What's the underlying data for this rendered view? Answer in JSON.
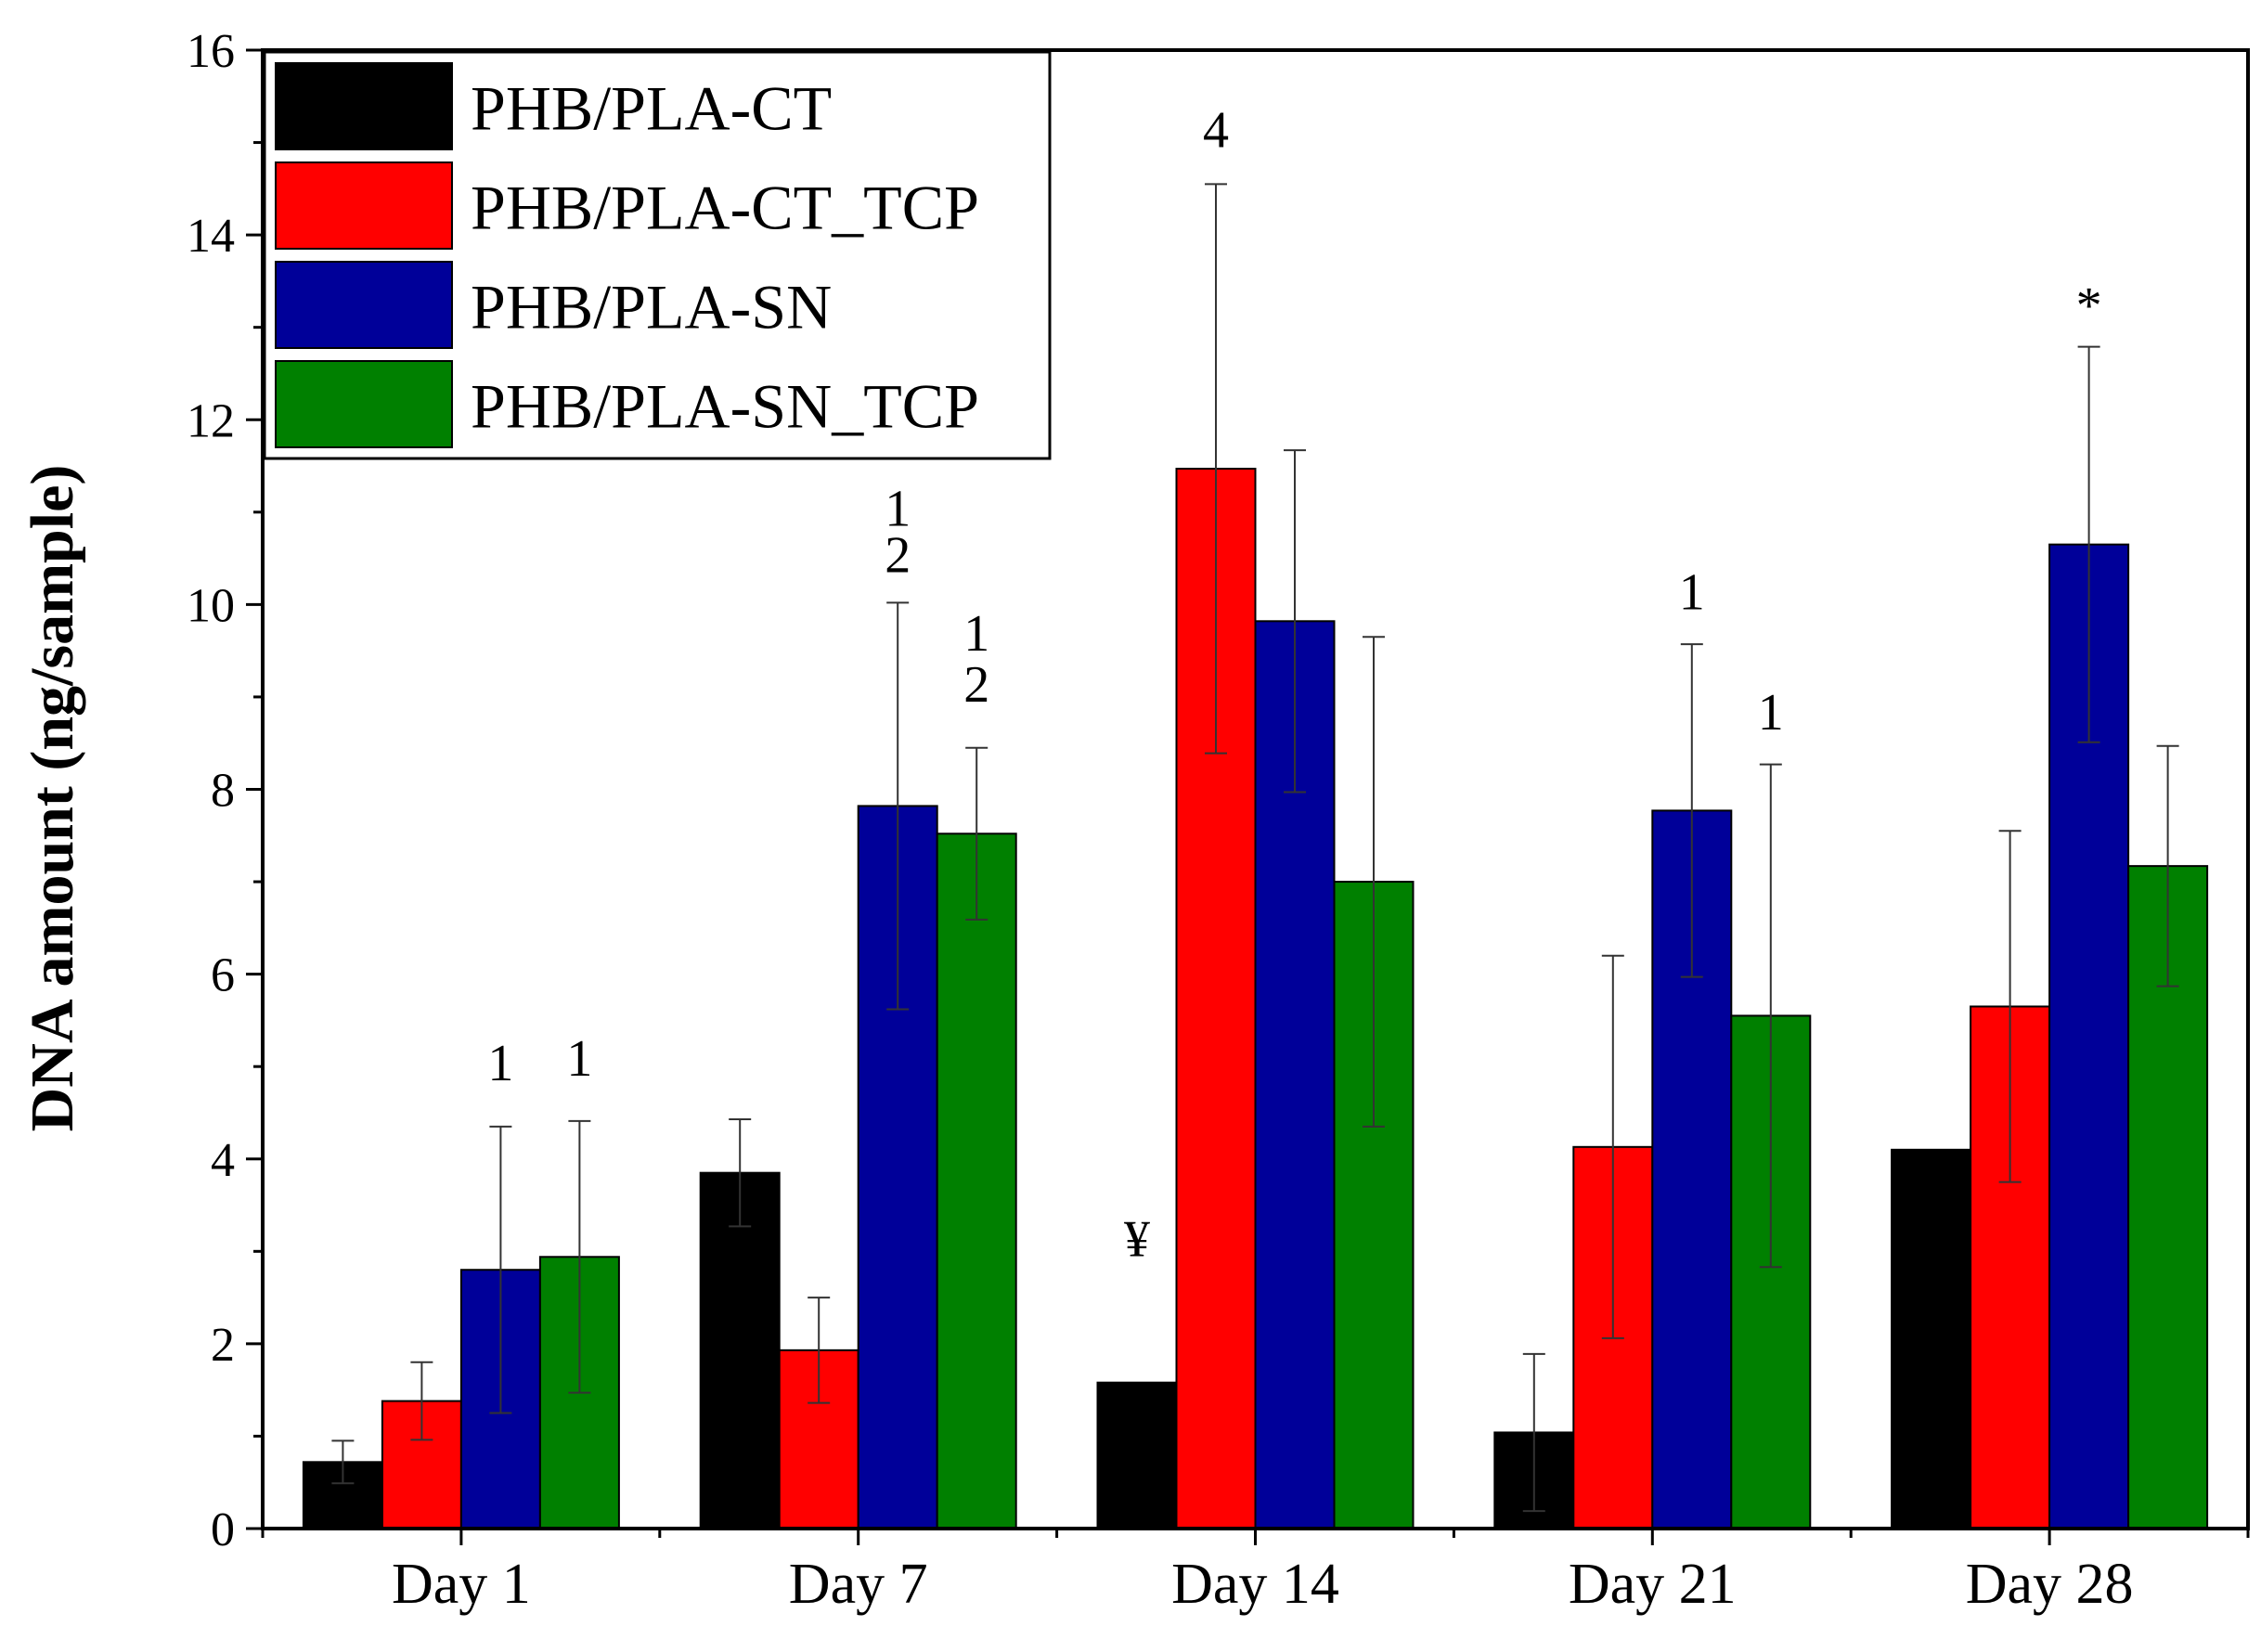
{
  "chart_data": {
    "type": "bar",
    "title": "",
    "xlabel": "",
    "ylabel": "DNA amount (ng/sample)",
    "ylim": [
      0,
      16
    ],
    "yticks": [
      "0",
      "2",
      "4",
      "6",
      "8",
      "10",
      "12",
      "14",
      "16"
    ],
    "grid": false,
    "legend_position": "top-left",
    "categories": [
      "Day 1",
      "Day 7",
      "Day 14",
      "Day 21",
      "Day 28"
    ],
    "series": [
      {
        "name": "PHB/PLA-CT",
        "color": "#000000",
        "values": [
          0.72,
          3.85,
          1.58,
          1.04,
          4.1
        ],
        "errors": [
          0.23,
          0.58,
          null,
          0.85,
          null
        ]
      },
      {
        "name": "PHB/PLA-CT_TCP",
        "color": "#ff0000",
        "values": [
          1.38,
          1.93,
          11.47,
          4.13,
          5.65
        ],
        "errors": [
          0.42,
          0.57,
          3.08,
          2.07,
          1.9
        ]
      },
      {
        "name": "PHB/PLA-SN",
        "color": "#000099",
        "values": [
          2.8,
          7.82,
          9.82,
          7.77,
          10.65
        ],
        "errors": [
          1.55,
          2.2,
          1.85,
          1.8,
          2.14
        ]
      },
      {
        "name": "PHB/PLA-SN_TCP",
        "color": "#008000",
        "values": [
          2.94,
          7.52,
          7.0,
          5.55,
          7.17
        ],
        "errors": [
          1.47,
          0.93,
          2.65,
          2.72,
          1.3
        ]
      }
    ],
    "annotations": [
      {
        "text": "1",
        "category": 0,
        "series": 2,
        "y": 4.85
      },
      {
        "text": "1",
        "category": 0,
        "series": 3,
        "y": 4.9
      },
      {
        "text": "1",
        "category": 1,
        "series": 2,
        "y": 10.85
      },
      {
        "text": "2",
        "category": 1,
        "series": 2,
        "y": 10.35
      },
      {
        "text": "1",
        "category": 1,
        "series": 3,
        "y": 9.5
      },
      {
        "text": "2",
        "category": 1,
        "series": 3,
        "y": 8.95
      },
      {
        "text": "¥",
        "category": 2,
        "series": 0,
        "y": 2.95
      },
      {
        "text": "4",
        "category": 2,
        "series": 1,
        "y": 14.95
      },
      {
        "text": "1",
        "category": 3,
        "series": 2,
        "y": 9.95
      },
      {
        "text": "1",
        "category": 3,
        "series": 3,
        "y": 8.65
      },
      {
        "text": "*",
        "category": 4,
        "series": 2,
        "y": 13.05
      }
    ]
  }
}
